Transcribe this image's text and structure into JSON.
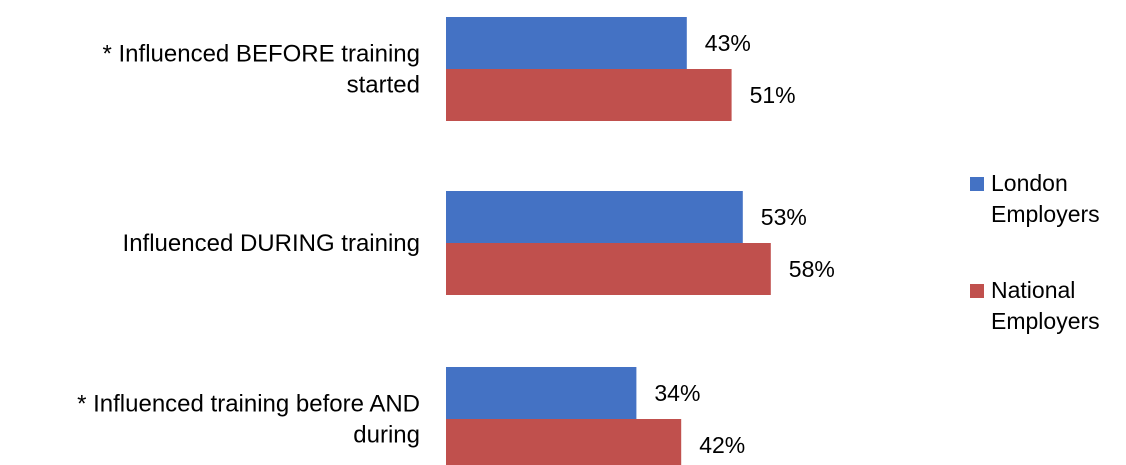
{
  "chart_data": {
    "type": "bar",
    "orientation": "horizontal",
    "categories": [
      [
        "* Influenced BEFORE training",
        "started"
      ],
      [
        "Influenced DURING training"
      ],
      [
        "* Influenced training before AND",
        "during"
      ]
    ],
    "series": [
      {
        "name": "London Employers",
        "label_lines": [
          "London",
          "Employers"
        ],
        "color": "#4472C4",
        "values": [
          43,
          53,
          34
        ]
      },
      {
        "name": "National Employers",
        "label_lines": [
          "National",
          "Employers"
        ],
        "color": "#C0504D",
        "values": [
          51,
          58,
          42
        ]
      }
    ],
    "value_suffix": "%",
    "xlim": [
      0,
      100
    ],
    "grid": false,
    "legend_position": "right"
  }
}
